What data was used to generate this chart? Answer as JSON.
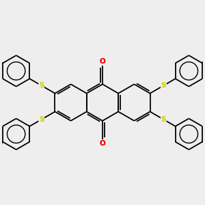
{
  "bg_color": "#eeeeee",
  "bond_color": "#000000",
  "sulfur_color": "#cccc00",
  "oxygen_color": "#ff0000",
  "lw": 1.3,
  "figsize": [
    3.0,
    3.0
  ],
  "dpi": 100,
  "xlim": [
    -5.5,
    5.5
  ],
  "ylim": [
    -5.5,
    5.5
  ]
}
